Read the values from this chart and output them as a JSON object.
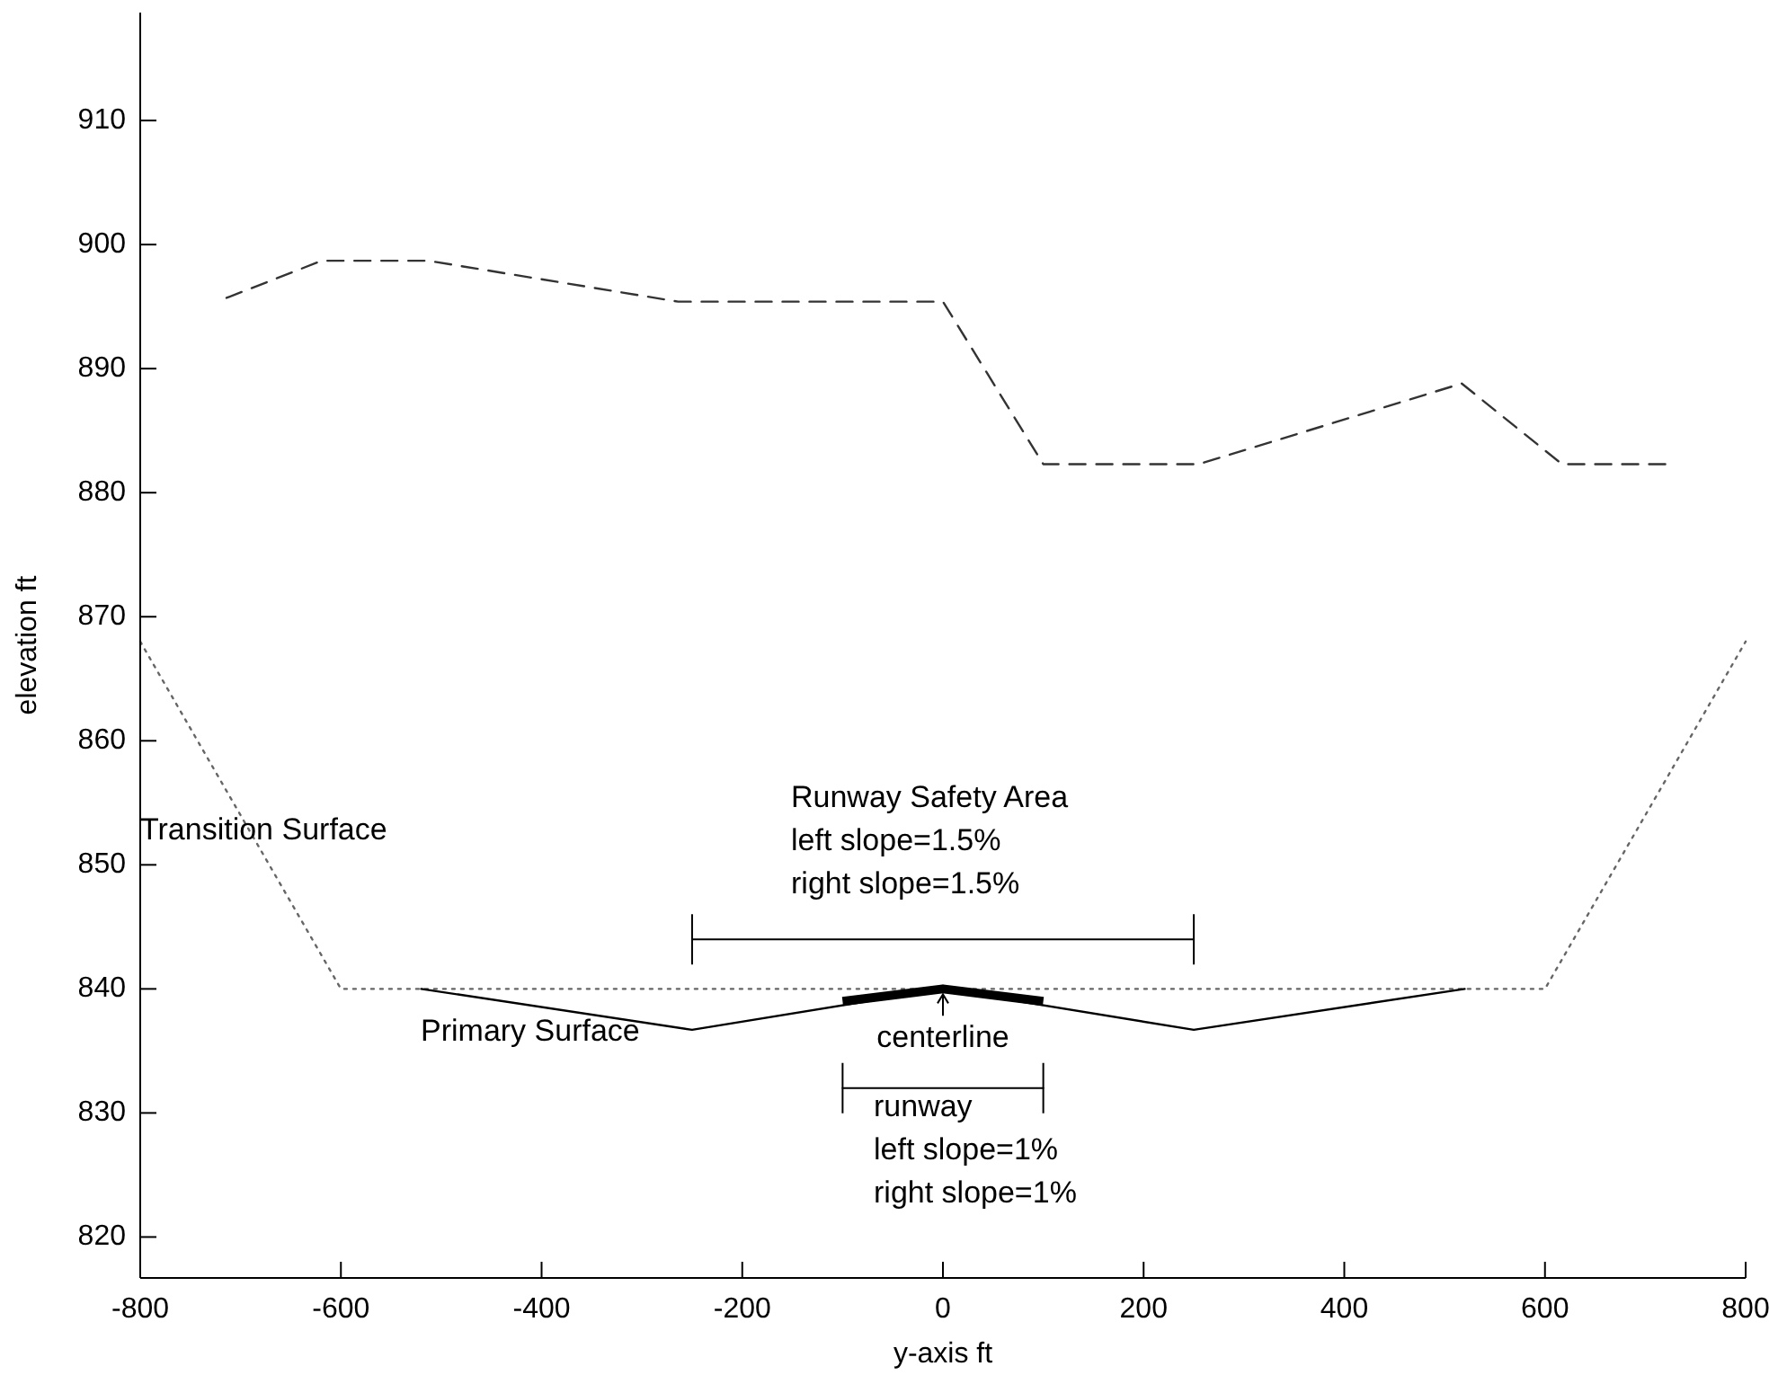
{
  "chart_data": {
    "type": "line",
    "xlabel": "y-axis ft",
    "ylabel": "elevation ft",
    "xlim": [
      -800,
      800
    ],
    "xticks": [
      -800,
      -600,
      -400,
      -200,
      0,
      200,
      400,
      600,
      800
    ],
    "ylim": [
      816.7,
      918.7
    ],
    "yticks": [
      820,
      830,
      840,
      850,
      860,
      870,
      880,
      890,
      900,
      910
    ],
    "grid": false,
    "marker": "none",
    "series": [
      {
        "color": "#333333",
        "line_style": "dashed",
        "x": [
          -714,
          -619,
          -513,
          -264,
          0,
          100,
          255,
          517,
          617,
          721
        ],
        "values": [
          895.7,
          898.7,
          898.7,
          895.4,
          895.4,
          882.3,
          882.3,
          888.8,
          882.3,
          882.3
        ]
      },
      {
        "color": "#666666",
        "line_style": "dotted",
        "x": [
          -800,
          -600,
          600,
          800
        ],
        "values": [
          868,
          840,
          840,
          868
        ]
      },
      {
        "color": "#000000",
        "line_style": "solid",
        "x": [
          -520,
          -250,
          0,
          250,
          520
        ],
        "values": [
          840,
          836.7,
          840,
          836.7,
          840
        ]
      },
      {
        "color": "#000000",
        "line_style": "solid",
        "x": [
          -100,
          0,
          100
        ],
        "values": [
          839,
          840,
          839
        ]
      },
      {
        "color": "#000000",
        "line_style": "solid",
        "x": [
          -250,
          250
        ],
        "values": [
          844,
          844
        ]
      },
      {
        "color": "#000000",
        "line_style": "solid",
        "x": [
          -100,
          100
        ],
        "values": [
          832,
          832
        ]
      }
    ],
    "annotations": [
      "Transition Surface",
      "Primary Surface",
      "Runway Safety Area\nleft slope=1.5%\nright slope=1.5%",
      {
        "text": "centerline",
        "x": 0,
        "y": 840
      },
      "runway\nleft slope=1%\nright slope=1%"
    ]
  }
}
